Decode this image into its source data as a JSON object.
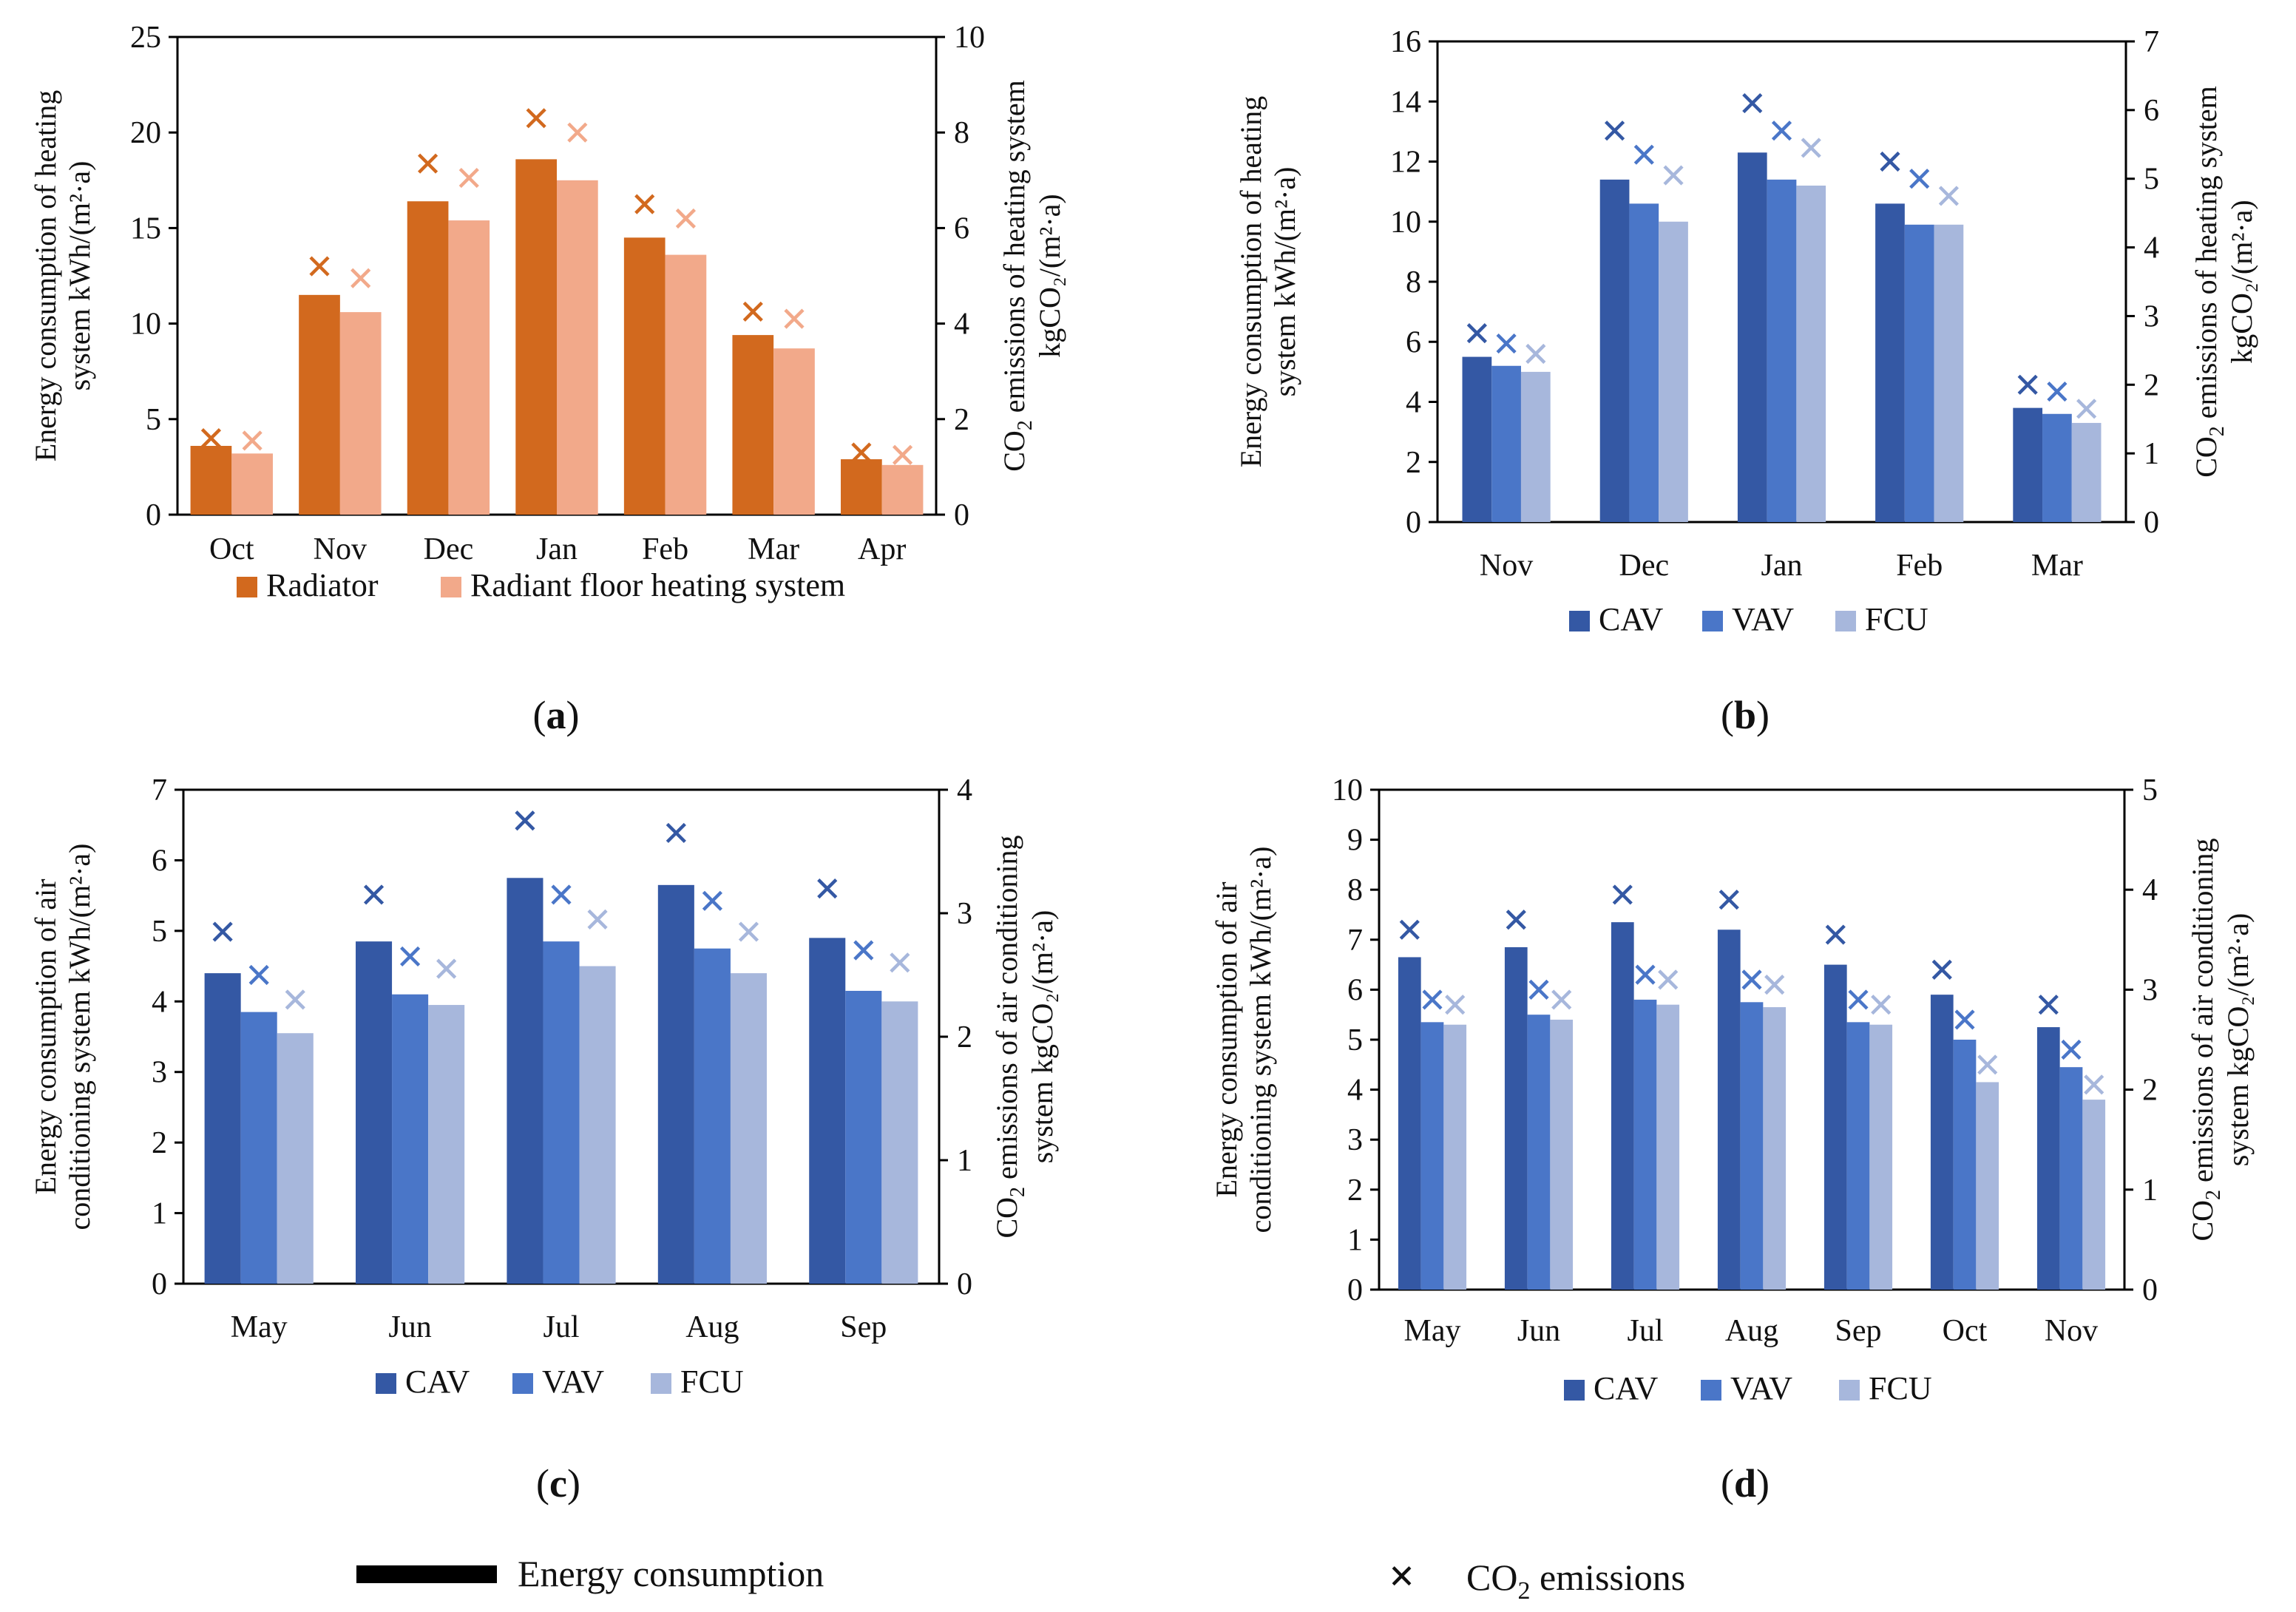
{
  "figure_legend": {
    "energy_label": "Energy consumption",
    "co2_label_prefix": "CO",
    "co2_label_sub": "2",
    "co2_label_suffix": " emissions",
    "co2_marker": "×"
  },
  "colors": {
    "radiator": "#D2691E",
    "radiant": "#F2A98A",
    "cav": "#3458A4",
    "vav": "#4A76C8",
    "fcu": "#A7B7DC",
    "axis": "#000000"
  },
  "chart_data": [
    {
      "id": "a",
      "type": "bar",
      "panel_label": "a",
      "categories": [
        "Oct",
        "Nov",
        "Dec",
        "Jan",
        "Feb",
        "Mar",
        "Apr"
      ],
      "series": [
        {
          "name": "Radiator",
          "values": [
            3.6,
            11.5,
            16.4,
            18.6,
            14.5,
            9.4,
            2.9
          ],
          "co2": [
            1.6,
            5.2,
            7.35,
            8.3,
            6.5,
            4.25,
            1.3
          ]
        },
        {
          "name": "Radiant floor heating system",
          "values": [
            3.2,
            10.6,
            15.4,
            17.5,
            13.6,
            8.7,
            2.6
          ],
          "co2": [
            1.55,
            4.95,
            7.05,
            8.0,
            6.2,
            4.1,
            1.25
          ]
        }
      ],
      "ylim": [
        0,
        25
      ],
      "yticks": [
        0,
        5,
        10,
        15,
        20,
        25
      ],
      "y2lim": [
        0,
        10
      ],
      "y2ticks": [
        0,
        2,
        4,
        6,
        8,
        10
      ],
      "ylabel_line1": "Energy consumption of heating",
      "ylabel_line2": "system kWh/(m²·a)",
      "y2label_line1_prefix": "CO",
      "y2label_line1_sub": "2",
      "y2label_line1_suffix": " emissions of heating system",
      "y2label_line2": "kgCO₂/(m²·a)"
    },
    {
      "id": "b",
      "type": "bar",
      "panel_label": "b",
      "categories": [
        "Nov",
        "Dec",
        "Jan",
        "Feb",
        "Mar"
      ],
      "series": [
        {
          "name": "CAV",
          "values": [
            5.5,
            11.4,
            12.3,
            10.6,
            3.8
          ],
          "co2": [
            2.75,
            5.7,
            6.1,
            5.25,
            2.0
          ]
        },
        {
          "name": "VAV",
          "values": [
            5.2,
            10.6,
            11.4,
            9.9,
            3.6
          ],
          "co2": [
            2.6,
            5.35,
            5.7,
            5.0,
            1.9
          ]
        },
        {
          "name": "FCU",
          "values": [
            5.0,
            10.0,
            11.2,
            9.9,
            3.3
          ],
          "co2": [
            2.45,
            5.05,
            5.45,
            4.75,
            1.65
          ]
        }
      ],
      "ylim": [
        0,
        16
      ],
      "yticks": [
        0,
        2,
        4,
        6,
        8,
        10,
        12,
        14,
        16
      ],
      "y2lim": [
        0,
        7
      ],
      "y2ticks": [
        0,
        1,
        2,
        3,
        4,
        5,
        6,
        7
      ],
      "ylabel_line1": "Energy consumption of heating",
      "ylabel_line2": "system kWh/(m²·a)",
      "y2label_line1_prefix": "CO",
      "y2label_line1_sub": "2",
      "y2label_line1_suffix": " emissions of heating system",
      "y2label_line2": "kgCO₂/(m²·a)"
    },
    {
      "id": "c",
      "type": "bar",
      "panel_label": "c",
      "categories": [
        "May",
        "Jun",
        "Jul",
        "Aug",
        "Sep"
      ],
      "series": [
        {
          "name": "CAV",
          "values": [
            4.4,
            4.85,
            5.75,
            5.65,
            4.9
          ],
          "co2": [
            2.85,
            3.15,
            3.75,
            3.65,
            3.2
          ]
        },
        {
          "name": "VAV",
          "values": [
            3.85,
            4.1,
            4.85,
            4.75,
            4.15
          ],
          "co2": [
            2.5,
            2.65,
            3.15,
            3.1,
            2.7
          ]
        },
        {
          "name": "FCU",
          "values": [
            3.55,
            3.95,
            4.5,
            4.4,
            4.0
          ],
          "co2": [
            2.3,
            2.55,
            2.95,
            2.85,
            2.6
          ]
        }
      ],
      "ylim": [
        0,
        7
      ],
      "yticks": [
        0,
        1,
        2,
        3,
        4,
        5,
        6,
        7
      ],
      "y2lim": [
        0,
        4
      ],
      "y2ticks": [
        0,
        1,
        2,
        3,
        4
      ],
      "ylabel_line1": "Energy consumption of air",
      "ylabel_line2": "conditioning system kWh/(m²·a)",
      "y2label_line1_prefix": "CO",
      "y2label_line1_sub": "2",
      "y2label_line1_suffix": " emissions of air conditioning",
      "y2label_line2": "system kgCO₂/(m²·a)"
    },
    {
      "id": "d",
      "type": "bar",
      "panel_label": "d",
      "categories": [
        "May",
        "Jun",
        "Jul",
        "Aug",
        "Sep",
        "Oct",
        "Nov"
      ],
      "series": [
        {
          "name": "CAV",
          "values": [
            6.65,
            6.85,
            7.35,
            7.2,
            6.5,
            5.9,
            5.25
          ],
          "co2": [
            3.6,
            3.7,
            3.95,
            3.9,
            3.55,
            3.2,
            2.85
          ]
        },
        {
          "name": "VAV",
          "values": [
            5.35,
            5.5,
            5.8,
            5.75,
            5.35,
            5.0,
            4.45
          ],
          "co2": [
            2.9,
            3.0,
            3.15,
            3.1,
            2.9,
            2.7,
            2.4
          ]
        },
        {
          "name": "FCU",
          "values": [
            5.3,
            5.4,
            5.7,
            5.65,
            5.3,
            4.15,
            3.8
          ],
          "co2": [
            2.85,
            2.9,
            3.1,
            3.05,
            2.85,
            2.25,
            2.05
          ]
        }
      ],
      "ylim": [
        0,
        10
      ],
      "yticks": [
        0,
        1,
        2,
        3,
        4,
        5,
        6,
        7,
        8,
        9,
        10
      ],
      "y2lim": [
        0,
        5
      ],
      "y2ticks": [
        0,
        1,
        2,
        3,
        4,
        5
      ],
      "ylabel_line1": "Energy consumption of air",
      "ylabel_line2": "conditioning system kWh/(m²·a)",
      "y2label_line1_prefix": "CO",
      "y2label_line1_sub": "2",
      "y2label_line1_suffix": " emissions of air conditioning",
      "y2label_line2": "system kgCO₂/(m²·a)"
    }
  ]
}
